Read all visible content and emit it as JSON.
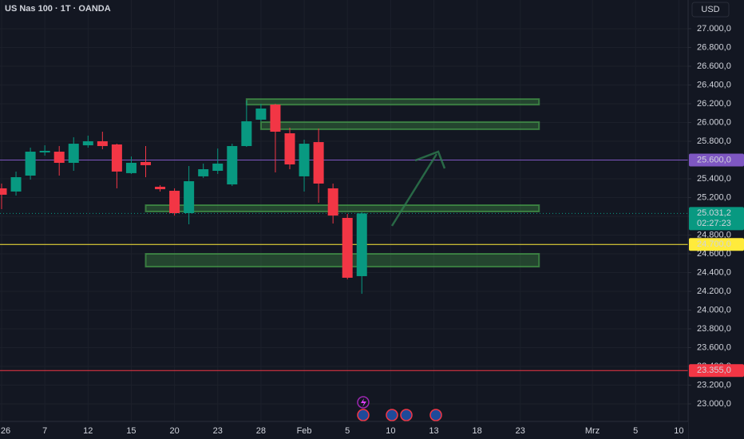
{
  "chart_data": {
    "type": "candlestick",
    "title": "US Nas 100 · 1T · OANDA",
    "currency": "USD",
    "categories": [
      "26",
      null,
      null,
      "7",
      null,
      null,
      "12",
      null,
      null,
      "15",
      null,
      null,
      "20",
      null,
      null,
      "23",
      null,
      null,
      "28",
      null,
      null,
      "Feb",
      null,
      null,
      "5",
      null,
      null,
      "10",
      null,
      null,
      "13",
      null,
      null,
      "18",
      null,
      null,
      "23",
      null,
      null,
      null,
      null,
      "Mrz",
      null,
      null,
      "5",
      null,
      null,
      "10"
    ],
    "open": [
      25298,
      25264,
      25434,
      25681,
      25689,
      25570,
      25757,
      25800,
      25766,
      25460,
      25579,
      25315,
      25272,
      25034,
      25426,
      25485,
      25340,
      25749,
      26030,
      26191,
      25885,
      25426,
      25791,
      25298,
      24983,
      24362,
      null,
      null,
      null,
      null,
      null,
      null,
      null,
      null,
      null,
      null,
      null,
      null,
      null,
      null,
      null,
      null,
      null,
      null,
      null,
      null,
      null,
      null
    ],
    "high": [
      25349,
      25477,
      25732,
      25757,
      25749,
      25843,
      25860,
      25902,
      25774,
      25638,
      25749,
      25332,
      25298,
      25536,
      25562,
      25723,
      25774,
      26234,
      26200,
      26200,
      25945,
      25817,
      25936,
      25349,
      25025,
      25042,
      null,
      null,
      null,
      null,
      null,
      null,
      null,
      null,
      null,
      null,
      null,
      null,
      null,
      null,
      null,
      null,
      null,
      null,
      null,
      null,
      null,
      null
    ],
    "low": [
      25077,
      25221,
      25391,
      25647,
      25434,
      25485,
      25732,
      25715,
      25298,
      25451,
      25417,
      25264,
      25008,
      24915,
      25409,
      25451,
      25323,
      25740,
      26013,
      25468,
      25502,
      25264,
      25145,
      24923,
      24328,
      24174,
      null,
      null,
      null,
      null,
      null,
      null,
      null,
      null,
      null,
      null,
      null,
      null,
      null,
      null,
      null,
      null,
      null,
      null,
      null,
      null,
      null,
      null
    ],
    "close": [
      25230,
      25417,
      25689,
      25698,
      25570,
      25774,
      25800,
      25749,
      25477,
      25570,
      25545,
      25289,
      25034,
      25374,
      25502,
      25562,
      25749,
      26013,
      26149,
      25902,
      25553,
      25774,
      25349,
      25008,
      24345,
      25031.2,
      null,
      null,
      null,
      null,
      null,
      null,
      null,
      null,
      null,
      null,
      null,
      null,
      null,
      null,
      null,
      null,
      null,
      null,
      null,
      null,
      null,
      null
    ],
    "up_color": "#089981",
    "down_color": "#f23645",
    "ylim": [
      22813,
      27306
    ],
    "yticks": [
      {
        "value": 23000,
        "label": "23.000,0"
      },
      {
        "value": 23200,
        "label": "23.200,0"
      },
      {
        "value": 23400,
        "label": "23.400,0"
      },
      {
        "value": 23600,
        "label": "23.600,0"
      },
      {
        "value": 23800,
        "label": "23.800,0"
      },
      {
        "value": 24000,
        "label": "24.000,0"
      },
      {
        "value": 24200,
        "label": "24.200,0"
      },
      {
        "value": 24400,
        "label": "24.400,0"
      },
      {
        "value": 24600,
        "label": "24.600,0"
      },
      {
        "value": 24800,
        "label": "24.800,0"
      },
      {
        "value": 25000,
        "label": "25.000,0"
      },
      {
        "value": 25200,
        "label": "25.200,0"
      },
      {
        "value": 25400,
        "label": "25.400,0"
      },
      {
        "value": 25600,
        "label": "25.600,0"
      },
      {
        "value": 25800,
        "label": "25.800,0"
      },
      {
        "value": 26000,
        "label": "26.000,0"
      },
      {
        "value": 26200,
        "label": "26.200,0"
      },
      {
        "value": 26400,
        "label": "26.400,0"
      },
      {
        "value": 26600,
        "label": "26.600,0"
      },
      {
        "value": 26800,
        "label": "26.800,0"
      },
      {
        "value": 27000,
        "label": "27.000,0"
      }
    ],
    "grid": true,
    "zones": [
      {
        "top": 26250,
        "bottom": 26190,
        "start": 17,
        "end": 37.3
      },
      {
        "top": 26005,
        "bottom": 25928,
        "start": 18,
        "end": 37.3
      },
      {
        "top": 25119,
        "bottom": 25051,
        "start": 10,
        "end": 37.3
      },
      {
        "top": 24600,
        "bottom": 24463,
        "start": 10,
        "end": 37.3
      }
    ],
    "zone_color": "#4caf50",
    "price_lines": [
      {
        "value": 25600,
        "label": "25.600,0",
        "color": "#7e57c2",
        "text_color": "#ffffff"
      },
      {
        "value": 24700,
        "label": "24.700,0",
        "color": "#ffeb3b",
        "text_color": "#000000"
      },
      {
        "value": 23355,
        "label": "23.355,0",
        "color": "#f23645",
        "text_color": "#ffffff"
      }
    ],
    "last_price": {
      "value": 25031.2,
      "label": "25.031,2",
      "countdown": "02:27:23",
      "color": "#089981"
    }
  }
}
